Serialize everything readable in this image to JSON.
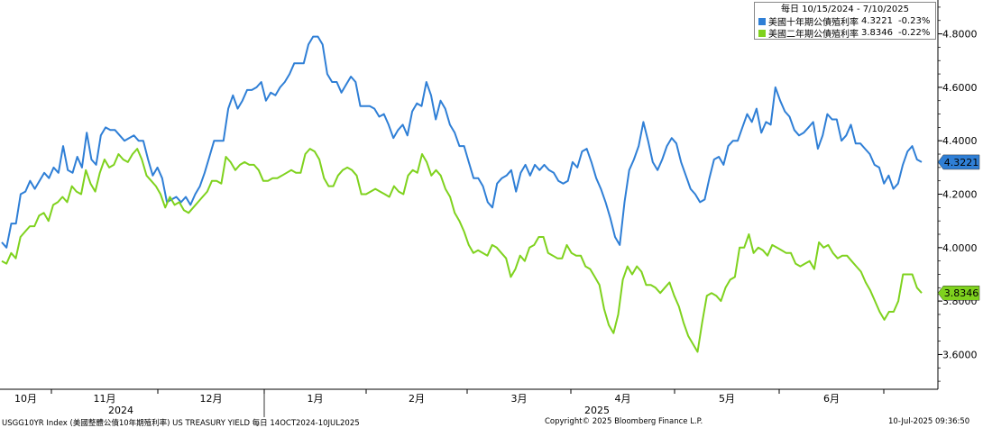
{
  "chart_data": {
    "type": "line",
    "title": "",
    "legend": {
      "title": "每日 10/15/2024 - 7/10/2025",
      "placement": "top-right"
    },
    "y_axis": {
      "position": "right",
      "ticks": [
        "3.6000",
        "3.8000",
        "4.0000",
        "4.2000",
        "4.4000",
        "4.6000",
        "4.8000"
      ],
      "ylim": [
        3.47,
        4.92
      ],
      "grid": false
    },
    "x_axis": {
      "month_labels": [
        "10月",
        "11月",
        "12月",
        "1月",
        "2月",
        "3月",
        "4月",
        "5月",
        "6月"
      ],
      "year_labels": [
        "2024",
        "2025"
      ],
      "grid": false
    },
    "series": [
      {
        "name": "美國十年期公債殖利率",
        "color": "#2f7fd6",
        "last_value": "4.3221",
        "change": "-0.23%",
        "values": [
          4.02,
          4.0,
          4.09,
          4.09,
          4.2,
          4.21,
          4.25,
          4.22,
          4.25,
          4.28,
          4.26,
          4.3,
          4.28,
          4.38,
          4.29,
          4.28,
          4.34,
          4.3,
          4.43,
          4.33,
          4.31,
          4.42,
          4.45,
          4.44,
          4.44,
          4.42,
          4.4,
          4.41,
          4.42,
          4.4,
          4.4,
          4.33,
          4.27,
          4.3,
          4.26,
          4.17,
          4.18,
          4.19,
          4.17,
          4.19,
          4.16,
          4.2,
          4.23,
          4.28,
          4.34,
          4.4,
          4.4,
          4.4,
          4.52,
          4.57,
          4.52,
          4.55,
          4.59,
          4.59,
          4.6,
          4.62,
          4.55,
          4.58,
          4.57,
          4.6,
          4.62,
          4.65,
          4.69,
          4.69,
          4.69,
          4.76,
          4.79,
          4.79,
          4.76,
          4.65,
          4.62,
          4.62,
          4.58,
          4.61,
          4.64,
          4.62,
          4.53,
          4.53,
          4.53,
          4.52,
          4.49,
          4.5,
          4.46,
          4.41,
          4.44,
          4.46,
          4.42,
          4.51,
          4.54,
          4.53,
          4.62,
          4.57,
          4.48,
          4.55,
          4.52,
          4.46,
          4.43,
          4.38,
          4.38,
          4.32,
          4.26,
          4.26,
          4.23,
          4.17,
          4.15,
          4.24,
          4.26,
          4.27,
          4.29,
          4.21,
          4.28,
          4.31,
          4.27,
          4.31,
          4.29,
          4.31,
          4.29,
          4.28,
          4.25,
          4.24,
          4.25,
          4.32,
          4.3,
          4.36,
          4.37,
          4.32,
          4.26,
          4.22,
          4.17,
          4.11,
          4.04,
          4.01,
          4.17,
          4.29,
          4.33,
          4.38,
          4.47,
          4.4,
          4.32,
          4.29,
          4.33,
          4.38,
          4.41,
          4.39,
          4.32,
          4.27,
          4.22,
          4.2,
          4.17,
          4.18,
          4.26,
          4.33,
          4.34,
          4.31,
          4.38,
          4.4,
          4.4,
          4.45,
          4.5,
          4.47,
          4.52,
          4.43,
          4.47,
          4.46,
          4.6,
          4.55,
          4.51,
          4.49,
          4.44,
          4.42,
          4.43,
          4.45,
          4.47,
          4.37,
          4.42,
          4.5,
          4.48,
          4.48,
          4.4,
          4.42,
          4.46,
          4.39,
          4.39,
          4.37,
          4.35,
          4.31,
          4.3,
          4.24,
          4.27,
          4.22,
          4.24,
          4.31,
          4.36,
          4.38,
          4.33,
          4.32
        ]
      },
      {
        "name": "美國二年期公債殖利率",
        "color": "#7fd21e",
        "last_value": "3.8346",
        "change": "-0.22%",
        "values": [
          3.95,
          3.94,
          3.98,
          3.96,
          4.04,
          4.06,
          4.08,
          4.08,
          4.12,
          4.13,
          4.1,
          4.16,
          4.17,
          4.19,
          4.17,
          4.23,
          4.21,
          4.2,
          4.29,
          4.24,
          4.21,
          4.28,
          4.33,
          4.3,
          4.31,
          4.35,
          4.33,
          4.32,
          4.35,
          4.37,
          4.33,
          4.27,
          4.25,
          4.23,
          4.2,
          4.15,
          4.19,
          4.16,
          4.17,
          4.14,
          4.13,
          4.15,
          4.17,
          4.19,
          4.21,
          4.25,
          4.25,
          4.24,
          4.34,
          4.32,
          4.29,
          4.31,
          4.32,
          4.31,
          4.31,
          4.29,
          4.25,
          4.25,
          4.26,
          4.26,
          4.27,
          4.28,
          4.29,
          4.28,
          4.28,
          4.35,
          4.37,
          4.36,
          4.33,
          4.26,
          4.23,
          4.23,
          4.27,
          4.29,
          4.3,
          4.29,
          4.27,
          4.2,
          4.2,
          4.21,
          4.22,
          4.21,
          4.2,
          4.19,
          4.23,
          4.21,
          4.2,
          4.27,
          4.29,
          4.28,
          4.35,
          4.32,
          4.27,
          4.29,
          4.27,
          4.22,
          4.19,
          4.13,
          4.1,
          4.06,
          4.01,
          3.98,
          3.99,
          3.98,
          3.97,
          4.01,
          4.0,
          3.98,
          3.96,
          3.89,
          3.92,
          3.97,
          3.95,
          4.0,
          4.01,
          4.04,
          4.04,
          3.98,
          3.97,
          3.96,
          3.96,
          4.01,
          3.98,
          3.97,
          3.97,
          3.93,
          3.92,
          3.89,
          3.86,
          3.77,
          3.71,
          3.68,
          3.75,
          3.88,
          3.93,
          3.9,
          3.93,
          3.91,
          3.86,
          3.86,
          3.85,
          3.83,
          3.85,
          3.87,
          3.82,
          3.78,
          3.72,
          3.67,
          3.64,
          3.61,
          3.72,
          3.82,
          3.83,
          3.82,
          3.8,
          3.85,
          3.88,
          3.89,
          4.0,
          4.0,
          4.05,
          3.98,
          4.0,
          3.99,
          3.97,
          4.01,
          4.0,
          3.99,
          3.98,
          3.98,
          3.94,
          3.93,
          3.94,
          3.95,
          3.92,
          4.02,
          4.0,
          4.01,
          3.98,
          3.96,
          3.97,
          3.97,
          3.95,
          3.93,
          3.91,
          3.87,
          3.84,
          3.8,
          3.76,
          3.73,
          3.76,
          3.76,
          3.8,
          3.9,
          3.9,
          3.9,
          3.85,
          3.83
        ]
      }
    ]
  },
  "footer": {
    "left": "USGG10YR Index (美國整體公債10年期殖利率) US TREASURY YIELD  每日 14OCT2024-10JUL2025",
    "center": "Copyright© 2025 Bloomberg Finance L.P.",
    "right": "10-Jul-2025 09:36:50"
  }
}
